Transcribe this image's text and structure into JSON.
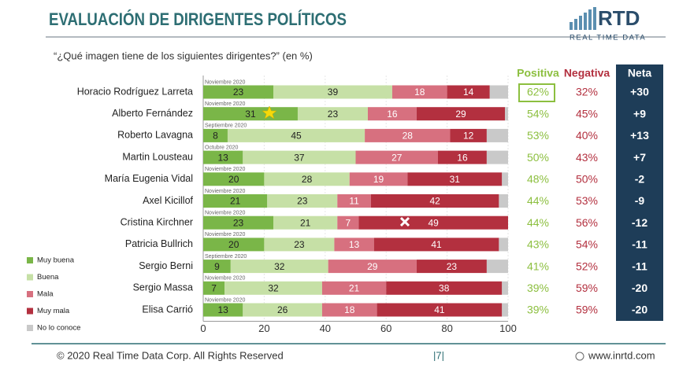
{
  "chart_data": {
    "type": "stacked_barh",
    "title": "EVALUACIÓN DE DIRIGENTES POLÍTICOS",
    "subtitle": "“¿Qué imagen tiene de los siguientes dirigentes?” (en %)",
    "brand": "RTD",
    "brand_sub": "REAL TIME DATA",
    "categories": [
      "Horacio Rodríguez Larreta",
      "Alberto Fernández",
      "Roberto Lavagna",
      "Martin Lousteau",
      "María Eugenia Vidal",
      "Axel Kicillof",
      "Cristina Kirchner",
      "Patricia Bullrich",
      "Sergio Berni",
      "Sergio Massa",
      "Elisa Carrió"
    ],
    "dates": [
      "Noviembre 2020",
      "Noviembre 2020",
      "Septiembre 2020",
      "Octubre 2020",
      "Noviembre 2020",
      "Noviembre 2020",
      "Noviembre 2020",
      "Noviembre 2020",
      "Septiembre 2020",
      "Noviembre 2020",
      "Noviembre 2020"
    ],
    "series": [
      {
        "name": "Muy buena",
        "color": "#7ab648",
        "show_labels": true,
        "values": [
          23,
          31,
          8,
          13,
          20,
          21,
          23,
          20,
          9,
          7,
          13
        ]
      },
      {
        "name": "Buena",
        "color": "#c6e0a6",
        "show_labels": true,
        "values": [
          39,
          23,
          45,
          37,
          28,
          23,
          21,
          23,
          32,
          32,
          26
        ]
      },
      {
        "name": "Mala",
        "color": "#d7707f",
        "show_labels": true,
        "values": [
          18,
          16,
          28,
          27,
          19,
          11,
          7,
          13,
          29,
          21,
          18
        ]
      },
      {
        "name": "Muy mala",
        "color": "#b3303f",
        "show_labels": true,
        "values": [
          14,
          29,
          12,
          16,
          31,
          42,
          49,
          41,
          23,
          38,
          41
        ]
      },
      {
        "name": "No lo conoce",
        "color": "#c9c9c9",
        "show_labels": false,
        "values": [
          6,
          1,
          7,
          7,
          2,
          3,
          0,
          3,
          7,
          2,
          2
        ]
      }
    ],
    "xlim": [
      0,
      100
    ],
    "xticks": [
      0,
      20,
      40,
      60,
      80,
      100
    ],
    "grid": true,
    "legend": "bottom-left",
    "columns": [
      {
        "header": "Positiva",
        "color": "#8cbf3f",
        "values": [
          "62%",
          "54%",
          "53%",
          "50%",
          "48%",
          "44%",
          "44%",
          "43%",
          "41%",
          "39%",
          "39%"
        ]
      },
      {
        "header": "Negativa",
        "color": "#b3303f",
        "values": [
          "32%",
          "45%",
          "40%",
          "43%",
          "50%",
          "53%",
          "56%",
          "54%",
          "52%",
          "59%",
          "59%"
        ]
      },
      {
        "header": "Neta",
        "color": "#ffffff",
        "values": [
          "+30",
          "+9",
          "+13",
          "+7",
          "-2",
          "-9",
          "-12",
          "-11",
          "-11",
          "-20",
          "-20"
        ]
      }
    ],
    "footer": "© 2020 Real Time Data Corp. All Rights Reserved",
    "page": "|7|",
    "website": "www.inrtd.com"
  }
}
